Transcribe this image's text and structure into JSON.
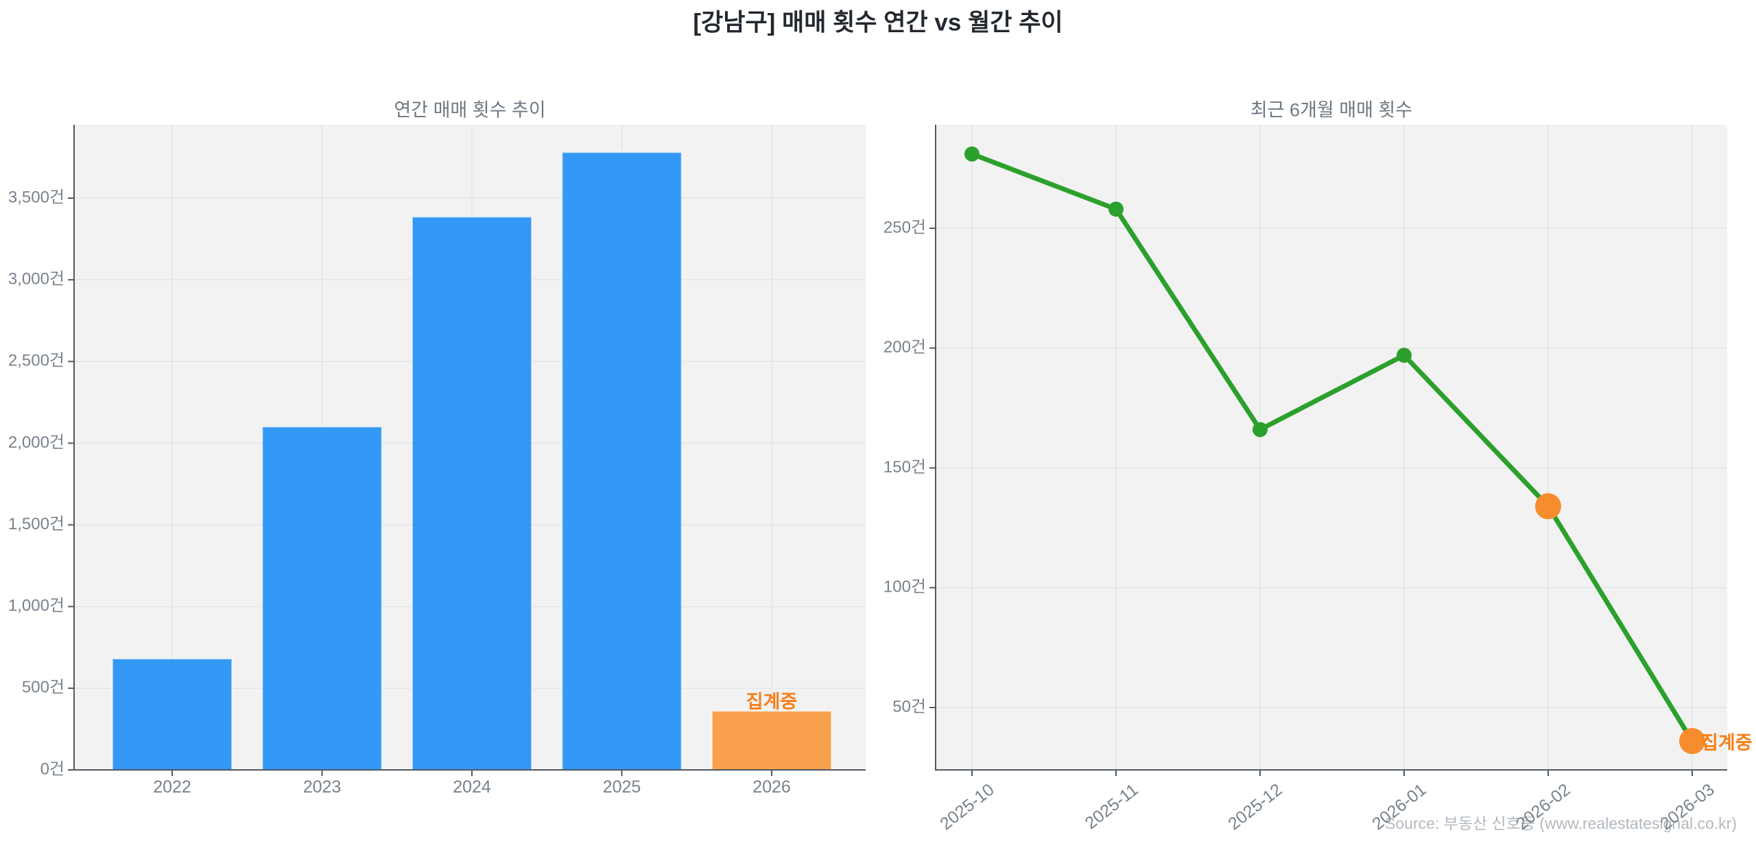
{
  "figure": {
    "title": "[강남구] 매매 횟수 연간 vs 월간 추이",
    "source_note": "Source: 부동산 신호등 (www.realestatesignal.co.kr)"
  },
  "colors": {
    "bar_blue": "#3498F6",
    "bar_orange": "#F9A04C",
    "line_green": "#2CA02C",
    "dot_green": "#2CA02C",
    "dot_orange": "#F68D2C",
    "annotation_orange": "#F87E17",
    "plot_bg": "#F2F2F3",
    "grid": "#E3E4E6",
    "spine": "#4F5962",
    "tick_text": "#79828C",
    "subtitle_text": "#6D7782",
    "title_text": "#23282F",
    "source_text": "#B2B9C0"
  },
  "chart_data": [
    {
      "type": "bar",
      "title": "연간 매매 횟수 추이",
      "categories": [
        "2022",
        "2023",
        "2024",
        "2025",
        "2026"
      ],
      "values": [
        680,
        2100,
        3385,
        3780,
        360
      ],
      "bar_colors": [
        "blue",
        "blue",
        "blue",
        "blue",
        "orange"
      ],
      "annotation": {
        "text": "집계중",
        "category": "2026"
      },
      "y_ticks": [
        "0건",
        "500건",
        "1,000건",
        "1,500건",
        "2,000건",
        "2,500건",
        "3,000건",
        "3,500건"
      ],
      "y_tick_values": [
        0,
        500,
        1000,
        1500,
        2000,
        2500,
        3000,
        3500
      ],
      "xlabel": "",
      "ylabel": "",
      "ylim": [
        0,
        3970
      ],
      "grid": true,
      "legend": "none"
    },
    {
      "type": "line",
      "title": "최근 6개월 매매 횟수",
      "categories": [
        "2025-10",
        "2025-11",
        "2025-12",
        "2026-01",
        "2026-02",
        "2026-03"
      ],
      "values": [
        281,
        258,
        166,
        197,
        134,
        36
      ],
      "point_colors": [
        "green",
        "green",
        "green",
        "green",
        "orange",
        "orange"
      ],
      "annotation": {
        "text": "집계중",
        "category": "2026-03"
      },
      "y_ticks": [
        "50건",
        "100건",
        "150건",
        "200건",
        "250건"
      ],
      "y_tick_values": [
        50,
        100,
        150,
        200,
        250
      ],
      "xlabel": "",
      "ylabel": "",
      "ylim": [
        24,
        294
      ],
      "grid": true,
      "legend": "none"
    }
  ]
}
